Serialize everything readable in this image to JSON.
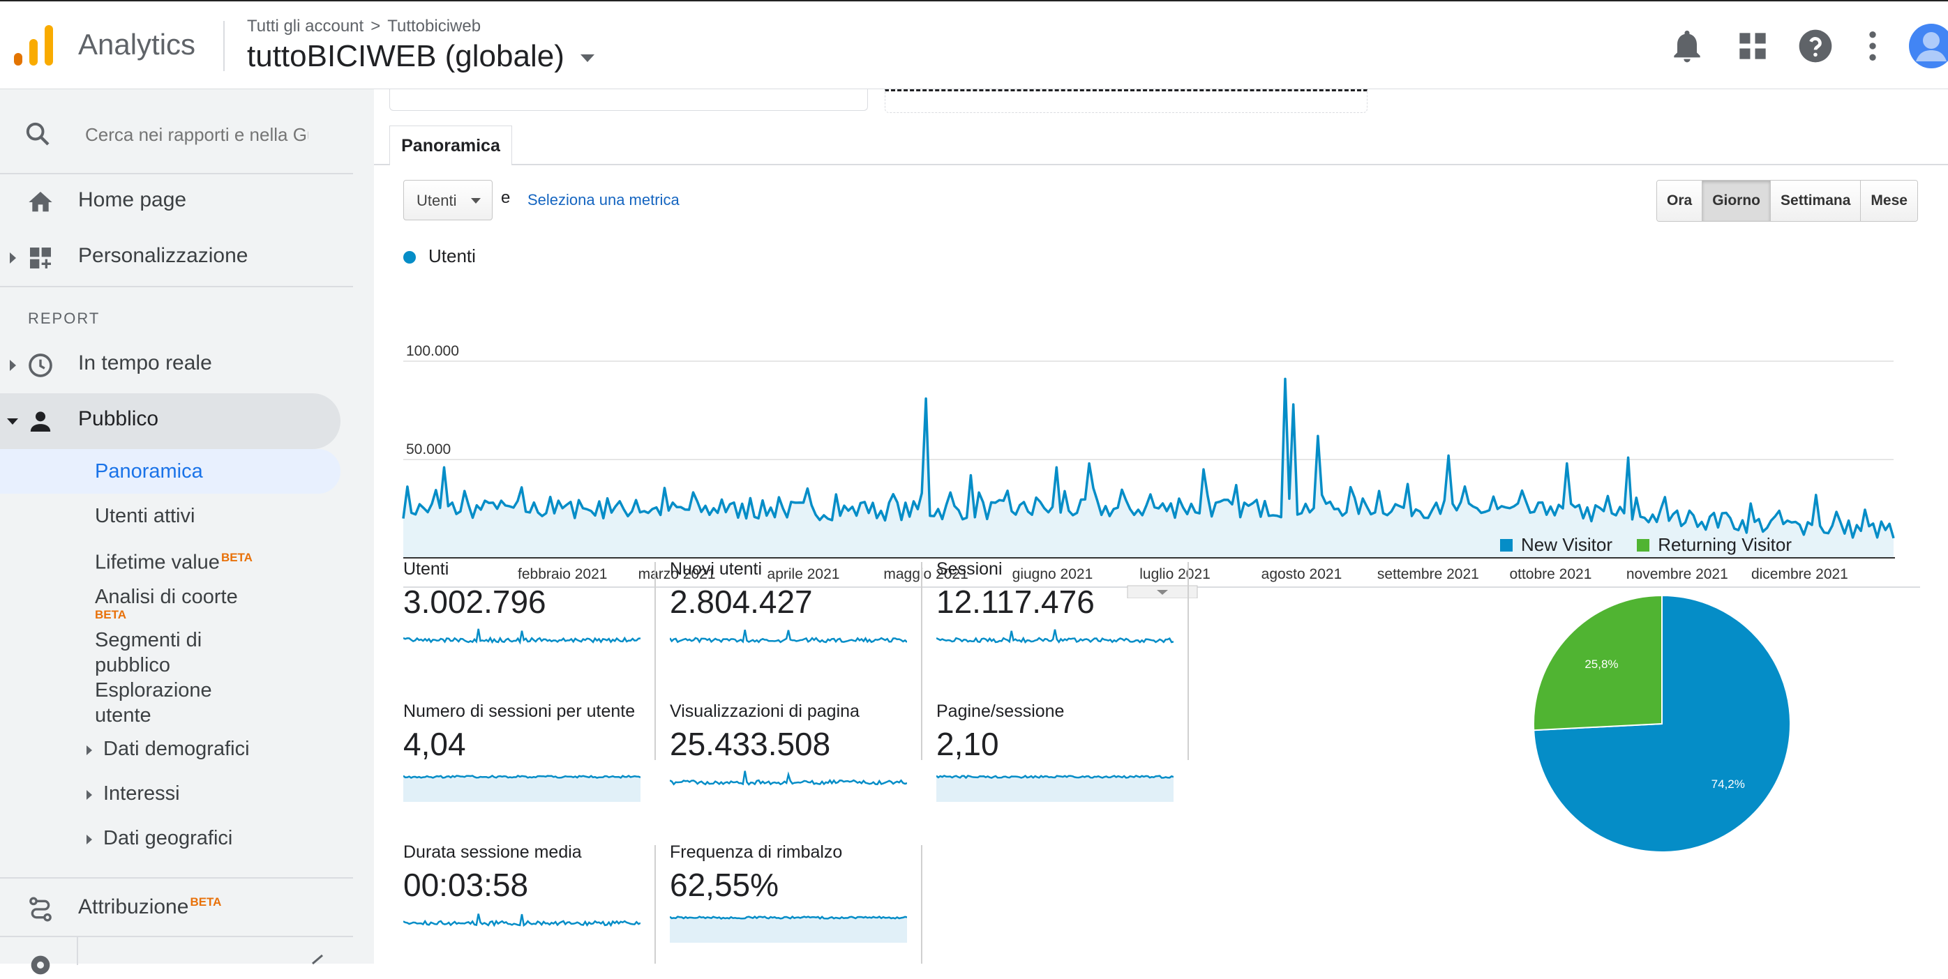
{
  "app": {
    "name": "Analytics",
    "breadcrumb": [
      "Tutti gli account",
      "Tuttobiciweb"
    ],
    "breadcrumb_sep": ">",
    "property": "tuttoBICIWEB (globale)"
  },
  "header_icons": [
    "bell-icon",
    "apps-grid-icon",
    "help-icon",
    "more-vert-icon",
    "account-avatar-icon"
  ],
  "sidebar": {
    "search_placeholder": "Cerca nei rapporti e nella Guida",
    "home": "Home page",
    "customization": "Personalizzazione",
    "report_label": "REPORT",
    "realtime": "In tempo reale",
    "audience": "Pubblico",
    "audience_items": {
      "overview": "Panoramica",
      "active_users": "Utenti attivi",
      "lifetime": "Lifetime value",
      "cohort": "Analisi di coorte",
      "segments": "Segmenti di pubblico",
      "explorer": "Esplorazione utente",
      "demographics": "Dati demografici",
      "interests": "Interessi",
      "geo": "Dati geografici"
    },
    "beta": "BETA",
    "attribution": "Attribuzione"
  },
  "main": {
    "tab": "Panoramica",
    "metric_select": "Utenti",
    "and": "e",
    "select_metric": "Seleziona una metrica",
    "granularity": [
      "Ora",
      "Giorno",
      "Settimana",
      "Mese"
    ],
    "granularity_selected": "Giorno",
    "legend": "Utenti"
  },
  "scorecards": [
    {
      "title": "Utenti",
      "value": "3.002.796"
    },
    {
      "title": "Nuovi utenti",
      "value": "2.804.427"
    },
    {
      "title": "Sessioni",
      "value": "12.117.476"
    },
    {
      "title": "Numero di sessioni per utente",
      "value": "4,04"
    },
    {
      "title": "Visualizzazioni di pagina",
      "value": "25.433.508"
    },
    {
      "title": "Pagine/sessione",
      "value": "2,10"
    },
    {
      "title": "Durata sessione media",
      "value": "00:03:58"
    },
    {
      "title": "Frequenza di rimbalzo",
      "value": "62,55%"
    }
  ],
  "pie": {
    "legend": [
      "New Visitor",
      "Returning Visitor"
    ],
    "labels": [
      "74,2%",
      "25,8%"
    ],
    "values": [
      74.2,
      25.8
    ],
    "colors": [
      "#058dc7",
      "#50b432"
    ]
  },
  "chart_data": {
    "type": "line",
    "series": [
      {
        "name": "Utenti",
        "color": "#058dc7"
      }
    ],
    "ytick_labels": [
      "100.000",
      "50.000"
    ],
    "yticks": [
      100000,
      50000
    ],
    "ylim": [
      0,
      100000
    ],
    "x_month_labels": [
      "febbraio 2021",
      "marzo 2021",
      "aprile 2021",
      "maggio 2021",
      "giugno 2021",
      "luglio 2021",
      "agosto 2021",
      "settembre 2021",
      "ottobre 2021",
      "novembre 2021",
      "dicembre 2021"
    ],
    "x_days": 365,
    "month_label_day": [
      39,
      67,
      98,
      128,
      159,
      189,
      220,
      251,
      281,
      312,
      342
    ],
    "spikes": [
      [
        10,
        46000
      ],
      [
        128,
        81000
      ],
      [
        139,
        42000
      ],
      [
        160,
        46000
      ],
      [
        168,
        48000
      ],
      [
        196,
        45000
      ],
      [
        216,
        91000
      ],
      [
        218,
        78000
      ],
      [
        224,
        62000
      ],
      [
        256,
        52000
      ],
      [
        285,
        48000
      ],
      [
        300,
        51000
      ],
      [
        346,
        32000
      ],
      [
        365,
        10000
      ]
    ],
    "baseline": [
      [
        0,
        25000
      ],
      [
        120,
        24000
      ],
      [
        240,
        26000
      ],
      [
        300,
        22000
      ],
      [
        340,
        16000
      ],
      [
        365,
        14000
      ]
    ]
  }
}
